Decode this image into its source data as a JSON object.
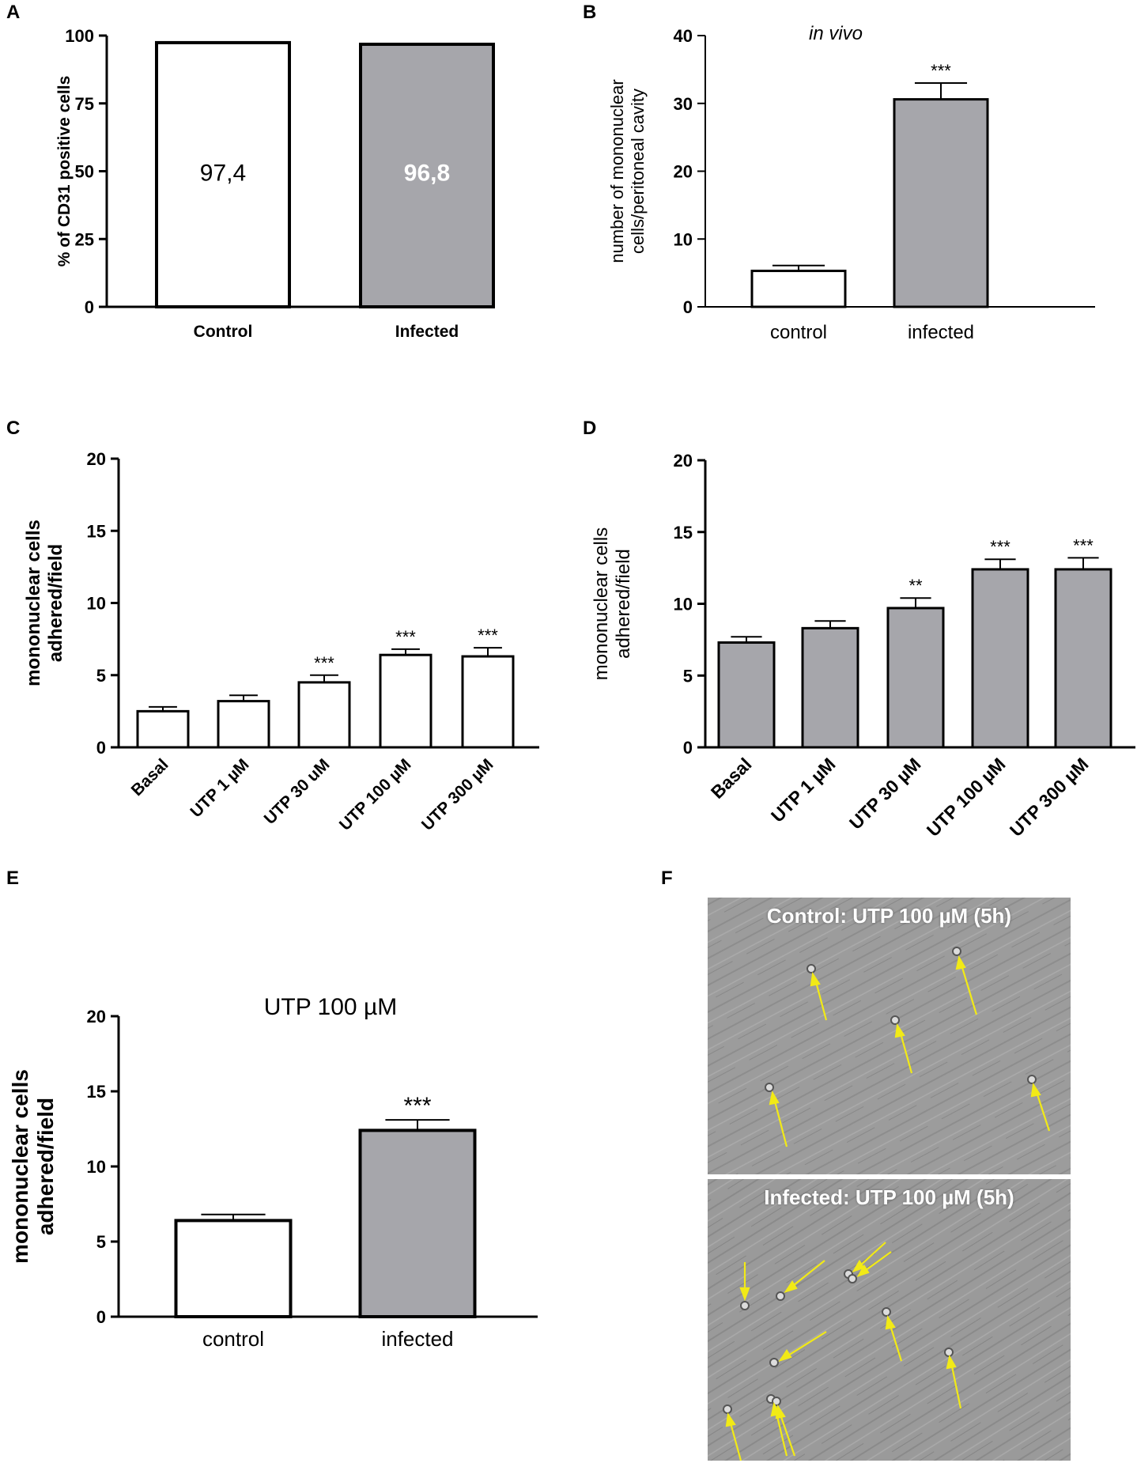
{
  "panel_labels": {
    "a": "A",
    "b": "B",
    "c": "C",
    "d": "D",
    "e": "E",
    "f": "F"
  },
  "colors": {
    "white_bar": "#ffffff",
    "gray_bar": "#a6a6ab",
    "arrow": "#f2ea16",
    "micro_bg": "#9b9b9b"
  },
  "chart_data": [
    {
      "id": "A",
      "type": "bar",
      "title": "",
      "categories": [
        "Control",
        "Infected"
      ],
      "values": [
        97.4,
        96.8
      ],
      "value_labels": [
        "97,4",
        "96,8"
      ],
      "fills": [
        "white",
        "gray"
      ],
      "ylabel": "% of  CD31 positive cells",
      "xlabel": "",
      "ylim": [
        0,
        100
      ],
      "yticks": [
        "0",
        "25",
        "50",
        "75",
        "100"
      ],
      "errors": [
        0,
        0
      ],
      "significance": [
        "",
        ""
      ]
    },
    {
      "id": "B",
      "type": "bar",
      "title": "in vivo",
      "categories": [
        "control",
        "infected"
      ],
      "values": [
        5.3,
        30.6
      ],
      "errors": [
        0.8,
        2.4
      ],
      "fills": [
        "white",
        "gray"
      ],
      "ylabel_lines": [
        "number of mononuclear",
        "cells/peritoneal cavity"
      ],
      "ylim": [
        0,
        40
      ],
      "yticks": [
        "0",
        "10",
        "20",
        "30",
        "40"
      ],
      "significance": [
        "",
        "***"
      ]
    },
    {
      "id": "C",
      "type": "bar",
      "title": "",
      "categories": [
        "Basal",
        "UTP 1 µM",
        "UTP 30 uM",
        "UTP 100 µM",
        "UTP 300 µM"
      ],
      "values": [
        2.5,
        3.2,
        4.5,
        6.4,
        6.3
      ],
      "errors": [
        0.3,
        0.4,
        0.5,
        0.4,
        0.6
      ],
      "fills": [
        "white",
        "white",
        "white",
        "white",
        "white"
      ],
      "ylabel_lines": [
        "mononuclear cells",
        "adhered/field"
      ],
      "ylim": [
        0,
        20
      ],
      "yticks": [
        "0",
        "5",
        "10",
        "15",
        "20"
      ],
      "significance": [
        "",
        "",
        "***",
        "***",
        "***"
      ]
    },
    {
      "id": "D",
      "type": "bar",
      "title": "",
      "categories": [
        "Basal",
        "UTP 1 µM",
        "UTP 30 µM",
        "UTP 100 µM",
        "UTP 300 µM"
      ],
      "values": [
        7.3,
        8.3,
        9.7,
        12.4,
        12.4
      ],
      "errors": [
        0.4,
        0.5,
        0.7,
        0.7,
        0.8
      ],
      "fills": [
        "gray",
        "gray",
        "gray",
        "gray",
        "gray"
      ],
      "ylabel_lines": [
        "mononuclear cells",
        "adhered/field"
      ],
      "ylim": [
        0,
        20
      ],
      "yticks": [
        "0",
        "5",
        "10",
        "15",
        "20"
      ],
      "significance": [
        "",
        "",
        "**",
        "***",
        "***"
      ]
    },
    {
      "id": "E",
      "type": "bar",
      "title": "UTP 100 µM",
      "categories": [
        "control",
        "infected"
      ],
      "values": [
        6.4,
        12.4
      ],
      "errors": [
        0.4,
        0.7
      ],
      "fills": [
        "white",
        "gray"
      ],
      "ylabel_lines": [
        "mononuclear cells",
        "adhered/field"
      ],
      "ylim": [
        0,
        20
      ],
      "yticks": [
        "0",
        "5",
        "10",
        "15",
        "20"
      ],
      "significance": [
        "",
        "***"
      ]
    }
  ],
  "micrographs": {
    "control_title": "Control: UTP 100 µM (5h)",
    "infected_title": "Infected: UTP 100 µM (5h)"
  }
}
